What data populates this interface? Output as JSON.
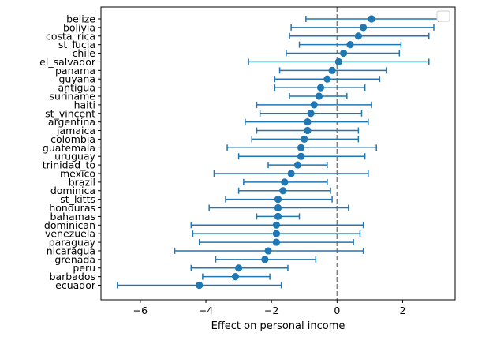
{
  "chart_data": {
    "type": "scatter",
    "xlabel": "Effect on personal income",
    "ylabel": "",
    "xlim": [
      -7.2,
      3.6
    ],
    "xticks": [
      -6,
      -4,
      -2,
      0,
      2
    ],
    "reference_line_x": 0,
    "legend": "top-right, empty",
    "colors": {
      "series": "#1f77b4",
      "reference": "#808080"
    },
    "categories": [
      "belize",
      "bolivia",
      "costa_rica",
      "st_lucia",
      "chile",
      "el_salvador",
      "panama",
      "guyana",
      "antigua",
      "suriname",
      "haiti",
      "st_vincent",
      "argentina",
      "jamaica",
      "colombia",
      "guatemala",
      "uruguay",
      "trinidad_to",
      "mexico",
      "brazil",
      "dominica",
      "st_kitts",
      "honduras",
      "bahamas",
      "dominican",
      "venezuela",
      "paraguay",
      "nicaragua",
      "grenada",
      "peru",
      "barbados",
      "ecuador"
    ],
    "series": [
      {
        "estimates": [
          1.05,
          0.8,
          0.65,
          0.4,
          0.2,
          0.05,
          -0.15,
          -0.3,
          -0.5,
          -0.55,
          -0.7,
          -0.8,
          -0.9,
          -0.9,
          -1.0,
          -1.1,
          -1.1,
          -1.2,
          -1.4,
          -1.6,
          -1.65,
          -1.8,
          -1.8,
          -1.8,
          -1.85,
          -1.85,
          -1.85,
          -2.1,
          -2.2,
          -3.0,
          -3.1,
          -4.2
        ],
        "ci_low": [
          -0.95,
          -1.4,
          -1.45,
          -1.15,
          -1.55,
          -2.7,
          -1.75,
          -1.9,
          -1.9,
          -1.45,
          -2.45,
          -2.35,
          -2.8,
          -2.45,
          -2.6,
          -3.35,
          -3.0,
          -2.1,
          -3.75,
          -2.85,
          -3.0,
          -3.4,
          -3.9,
          -2.45,
          -4.45,
          -4.4,
          -4.2,
          -4.95,
          -3.7,
          -4.45,
          -4.1,
          -6.7
        ],
        "ci_high": [
          3.1,
          2.95,
          2.8,
          1.95,
          1.9,
          2.8,
          1.5,
          1.3,
          0.85,
          0.3,
          1.05,
          0.75,
          0.95,
          0.65,
          0.65,
          1.2,
          0.85,
          -0.3,
          0.95,
          -0.3,
          -0.2,
          -0.15,
          0.35,
          -1.15,
          0.8,
          0.7,
          0.5,
          0.8,
          -0.65,
          -1.5,
          -2.05,
          -1.7
        ]
      }
    ]
  }
}
